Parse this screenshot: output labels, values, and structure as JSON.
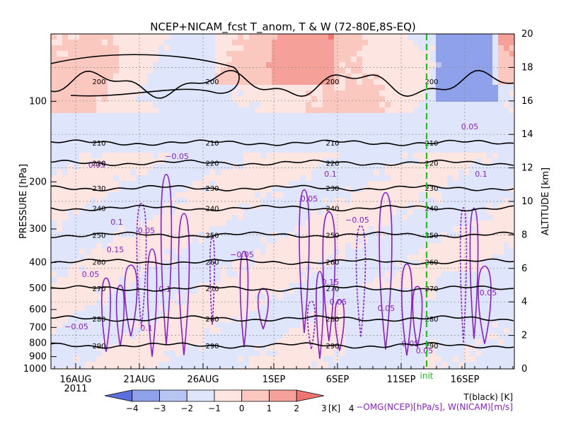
{
  "chart_data": {
    "type": "heatmap",
    "title": "NCEP+NICAM_fcst T_anom, T & W  (72-80E,8S-EQ)",
    "xlabel": "",
    "ylabel_left": "PRESSURE [hPa]",
    "ylabel_right": "ALTITUDE [km]",
    "x_ticks": [
      "16AUG",
      "21AUG",
      "26AUG",
      "1SEP",
      "6SEP",
      "11SEP",
      "16SEP"
    ],
    "x_year": "2011",
    "init_label": "init",
    "init_date": "13SEP",
    "pressure_ticks": [
      100,
      200,
      300,
      400,
      500,
      600,
      700,
      800,
      900,
      1000
    ],
    "pressure_tick_labels": [
      "100",
      "200",
      "300",
      "400",
      "500",
      "600",
      "700",
      "800",
      "900",
      "1000"
    ],
    "ylim_pressure": [
      1000,
      56
    ],
    "altitude_ticks": [
      0,
      2,
      4,
      6,
      8,
      10,
      12,
      14,
      16,
      18,
      20
    ],
    "altitude_tick_labels": [
      "0",
      "2",
      "4",
      "6",
      "8",
      "10",
      "12",
      "14",
      "16",
      "18",
      "20"
    ],
    "ylim_altitude": [
      0,
      20
    ],
    "colorbar": {
      "levels": [
        -4,
        -3,
        -2,
        -1,
        0,
        1,
        2,
        3,
        4
      ],
      "labels": [
        "−4",
        "−3",
        "−2",
        "−1",
        "0",
        "1",
        "2",
        "3",
        "4"
      ],
      "unit": "[K]",
      "colors": [
        "#5b70dc",
        "#8fa1ea",
        "#b7c5f2",
        "#dfe6fb",
        "#fde6e2",
        "#fbc8c0",
        "#f5a098",
        "#ef7570"
      ]
    },
    "t_contours": {
      "levels": [
        200,
        210,
        220,
        230,
        240,
        250,
        260,
        270,
        280,
        290
      ],
      "labels": [
        "200",
        "210",
        "220",
        "230",
        "240",
        "250",
        "260",
        "270",
        "280",
        "290"
      ],
      "approx_altitude_km": [
        17.0,
        13.5,
        12.3,
        10.8,
        9.6,
        8.0,
        6.4,
        4.8,
        3.0,
        1.4
      ],
      "color": "#000000"
    },
    "w_contours": {
      "levels": [
        -0.05,
        0.05,
        0.1,
        0.15
      ],
      "labels": [
        "−0.05",
        "0.05",
        "0.1",
        "0.15"
      ],
      "color": "#8a1ec8"
    },
    "legend": {
      "line1": "T(black) [K]",
      "line2": "−OMG(NCEP)[hPa/s], W(NICAM)[m/s]"
    },
    "grid": true
  }
}
